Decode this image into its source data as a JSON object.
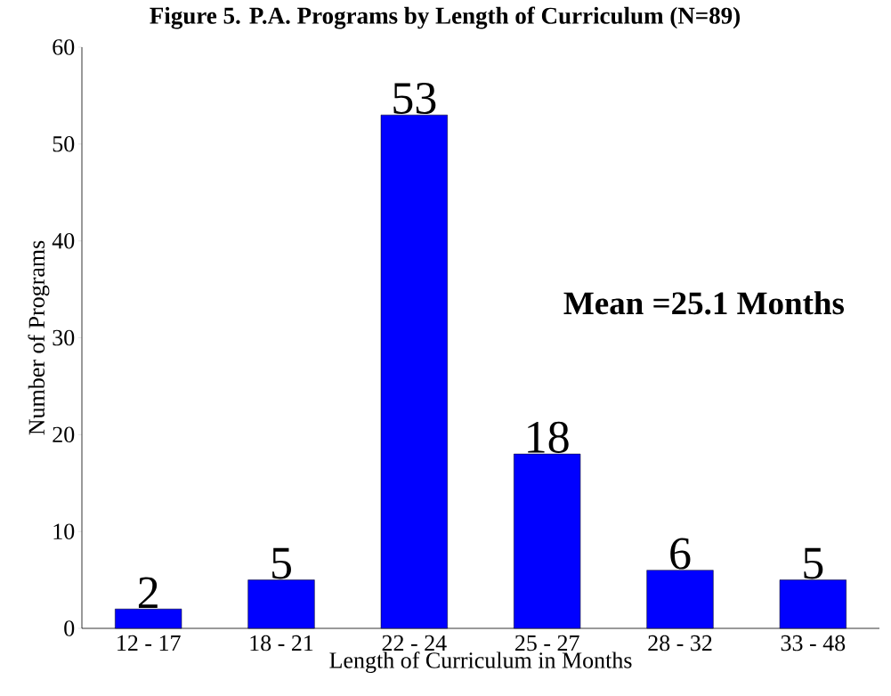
{
  "chart_data": {
    "type": "bar",
    "title": "Figure 5.  P.A. Programs by Length of Curriculum (N=89)",
    "xlabel": "Length of Curriculum in Months",
    "ylabel": "Number of Programs",
    "categories": [
      "12 - 17",
      "18 - 21",
      "22 - 24",
      "25 - 27",
      "28 - 32",
      "33 - 48"
    ],
    "values": [
      2,
      5,
      53,
      18,
      6,
      5
    ],
    "color": "#0000ff",
    "ylim": [
      0,
      60
    ],
    "yticks": [
      0,
      10,
      20,
      30,
      40,
      50,
      60
    ],
    "data_labels": true,
    "grid": false,
    "annotations": [
      "Mean =25.1 Months"
    ]
  }
}
